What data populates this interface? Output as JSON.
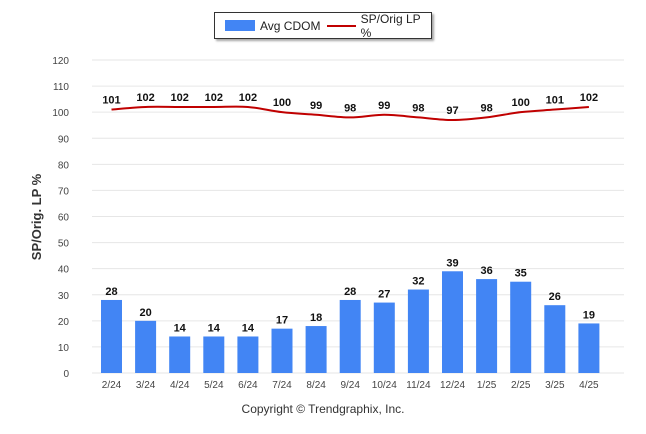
{
  "chart_data": {
    "type": "bar",
    "categories": [
      "2/24",
      "3/24",
      "4/24",
      "5/24",
      "6/24",
      "7/24",
      "8/24",
      "9/24",
      "10/24",
      "11/24",
      "12/24",
      "1/25",
      "2/25",
      "3/25",
      "4/25"
    ],
    "series": [
      {
        "name": "Avg CDOM",
        "type": "bar",
        "color": "#4285f4",
        "values": [
          28,
          20,
          14,
          14,
          14,
          17,
          18,
          28,
          27,
          32,
          39,
          36,
          35,
          26,
          19
        ]
      },
      {
        "name": "SP/Orig LP %",
        "type": "line",
        "color": "#c00000",
        "values": [
          101,
          102,
          102,
          102,
          102,
          100,
          99,
          98,
          99,
          98,
          97,
          98,
          100,
          101,
          102
        ]
      }
    ],
    "title": "",
    "xlabel": "",
    "ylabel": "SP/Orig. LP %",
    "ylim": [
      0,
      120
    ],
    "yticks": [
      0,
      10,
      20,
      30,
      40,
      50,
      60,
      70,
      80,
      90,
      100,
      110,
      120
    ],
    "grid": true,
    "legend_position": "top-center"
  },
  "legend": {
    "bar_label": "Avg CDOM",
    "line_label": "SP/Orig LP %"
  },
  "footer": {
    "copyright": "Copyright © Trendgraphix, Inc."
  },
  "colors": {
    "bar": "#4285f4",
    "line": "#c00000",
    "grid": "#e6e6e6"
  }
}
